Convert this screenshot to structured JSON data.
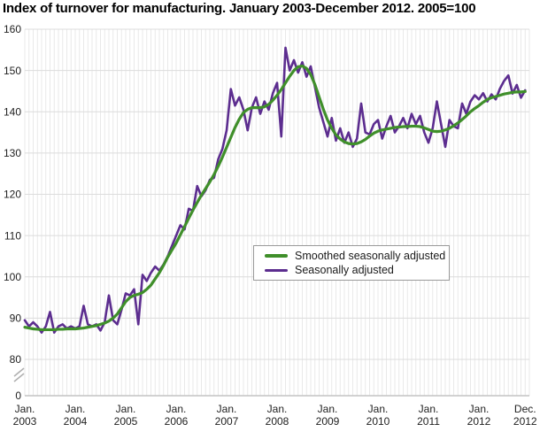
{
  "title": "Index of turnover for manufacturing. January 2003-December 2012. 2005=100",
  "chart_data": {
    "type": "line",
    "title": "Index of turnover for manufacturing. January 2003-December 2012. 2005=100",
    "xlabel": "",
    "ylabel": "",
    "ylim": [
      80,
      160
    ],
    "axis_break": true,
    "baseline_label": "0",
    "grid": true,
    "legend_position": "center-right",
    "y_ticks": [
      160,
      150,
      140,
      130,
      120,
      110,
      100,
      90,
      80
    ],
    "x_tick_months": [
      0,
      12,
      24,
      36,
      48,
      60,
      72,
      84,
      96,
      108,
      119
    ],
    "x_tick_labels": [
      [
        "Jan.",
        "2003"
      ],
      [
        "Jan.",
        "2004"
      ],
      [
        "Jan.",
        "2005"
      ],
      [
        "Jan.",
        "2006"
      ],
      [
        "Jan.",
        "2007"
      ],
      [
        "Jan.",
        "2008"
      ],
      [
        "Jan.",
        "2009"
      ],
      [
        "Jan.",
        "2010"
      ],
      [
        "Jan.",
        "2011"
      ],
      [
        "Jan.",
        "2012"
      ],
      [
        "Dec.",
        "2012"
      ]
    ],
    "colors": {
      "smoothed": "#3f8f2a",
      "seasonal": "#5c2d8f",
      "grid_vertical": "#e9e9e9",
      "grid_horizontal": "#dcdcdc",
      "axis": "#c4c4c4",
      "break_mark": "#b0b0b0",
      "tick_text": "#222222",
      "title_text": "#000000",
      "legend_border": "#999999"
    },
    "series": [
      {
        "name": "Smoothed seasonally adjusted",
        "color": "#3f8f2a",
        "values": [
          87.8,
          87.6,
          87.4,
          87.3,
          87.2,
          87.2,
          87.2,
          87.2,
          87.3,
          87.3,
          87.4,
          87.4,
          87.4,
          87.5,
          87.6,
          87.8,
          88.0,
          88.2,
          88.5,
          88.8,
          89.3,
          90.0,
          91.0,
          92.5,
          94.0,
          95.0,
          95.5,
          95.8,
          96.2,
          97.0,
          98.0,
          99.5,
          101.0,
          102.8,
          104.8,
          106.5,
          108.2,
          110.2,
          112.2,
          114.2,
          116.2,
          118.0,
          119.8,
          121.4,
          123.0,
          124.8,
          126.8,
          129.0,
          131.4,
          133.8,
          136.2,
          138.2,
          139.8,
          140.6,
          141.0,
          141.0,
          141.0,
          141.2,
          141.8,
          142.8,
          144.0,
          145.4,
          147.0,
          148.6,
          150.0,
          150.9,
          151.1,
          150.5,
          149.0,
          146.6,
          143.6,
          140.6,
          138.0,
          136.0,
          134.4,
          133.4,
          132.7,
          132.3,
          132.2,
          132.3,
          132.7,
          133.3,
          134.1,
          134.8,
          135.3,
          135.6,
          135.8,
          136.0,
          136.2,
          136.3,
          136.4,
          136.4,
          136.5,
          136.5,
          136.4,
          136.1,
          135.7,
          135.3,
          135.2,
          135.3,
          135.6,
          136.0,
          136.6,
          137.3,
          138.1,
          139.0,
          140.0,
          140.8,
          141.5,
          142.3,
          143.0,
          143.4,
          143.7,
          144.0,
          144.3,
          144.5,
          144.7,
          144.8,
          144.8,
          144.9
        ]
      },
      {
        "name": "Seasonally adjusted",
        "color": "#5c2d8f",
        "values": [
          89.5,
          88.0,
          89.0,
          88.0,
          86.5,
          88.0,
          91.5,
          86.5,
          88.0,
          88.5,
          87.5,
          88.0,
          87.5,
          88.0,
          93.0,
          88.5,
          88.0,
          88.5,
          87.0,
          89.0,
          95.5,
          89.5,
          88.5,
          92.0,
          96.0,
          95.5,
          97.0,
          88.5,
          100.5,
          99.0,
          101.0,
          102.5,
          101.5,
          103.0,
          105.0,
          107.5,
          110.0,
          112.5,
          111.5,
          116.5,
          116.0,
          122.0,
          119.5,
          121.0,
          123.5,
          124.0,
          128.5,
          131.0,
          135.5,
          145.5,
          141.5,
          143.5,
          140.5,
          135.5,
          141.0,
          143.5,
          139.5,
          142.5,
          140.5,
          144.5,
          147.0,
          134.0,
          155.5,
          150.0,
          152.5,
          149.5,
          152.0,
          148.5,
          151.0,
          146.0,
          141.0,
          137.5,
          134.0,
          138.5,
          133.0,
          136.0,
          132.5,
          135.0,
          131.5,
          133.5,
          142.0,
          135.0,
          134.5,
          137.0,
          138.0,
          133.5,
          136.5,
          139.0,
          135.0,
          136.5,
          138.5,
          136.0,
          139.5,
          137.0,
          139.0,
          135.0,
          132.5,
          136.0,
          142.5,
          137.0,
          131.5,
          138.0,
          136.5,
          136.0,
          142.0,
          139.5,
          142.5,
          144.0,
          143.0,
          144.5,
          142.5,
          144.2,
          143.0,
          145.6,
          147.5,
          148.8,
          144.4,
          146.5,
          143.4,
          145.2
        ]
      }
    ]
  }
}
